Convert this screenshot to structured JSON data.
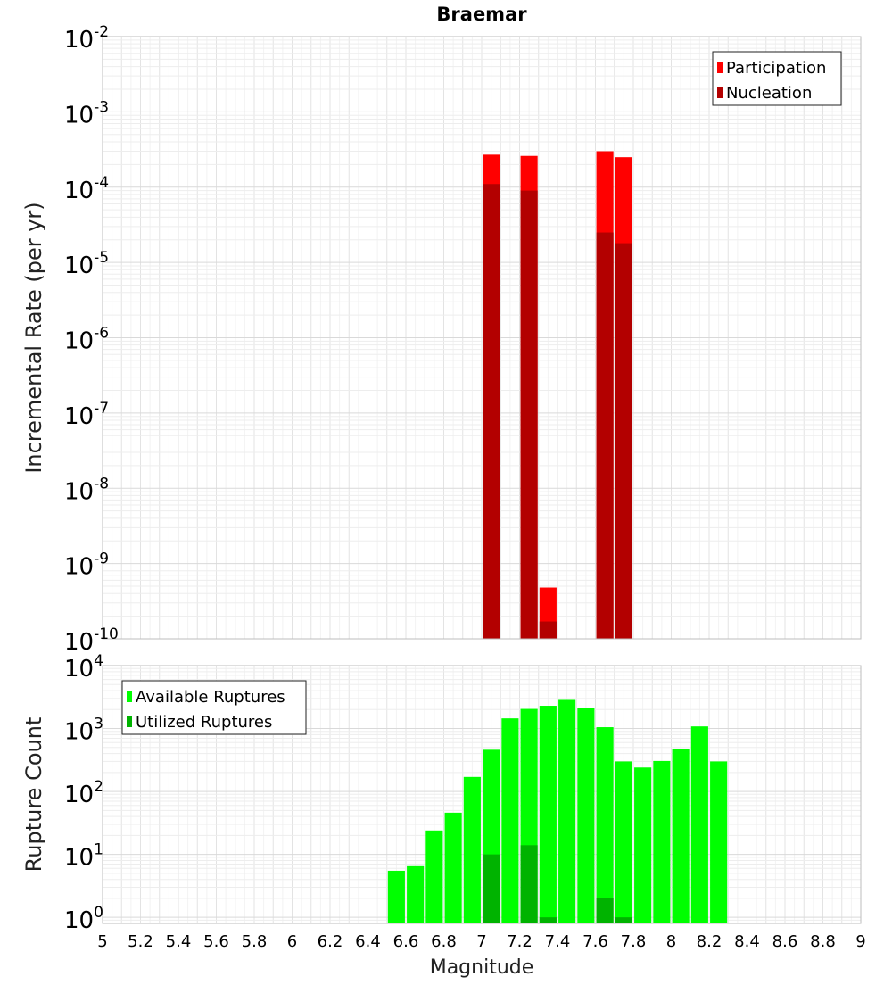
{
  "chart_data": [
    {
      "type": "bar",
      "title": "Braemar",
      "ylabel": "Incremental Rate (per yr)",
      "xlabel": "",
      "yscale": "log",
      "xlim": [
        5,
        9
      ],
      "ylim": [
        1e-10,
        0.01
      ],
      "y_tick_exponents": [
        -2,
        -3,
        -4,
        -5,
        -6,
        -7,
        -8,
        -9,
        -10
      ],
      "grid": true,
      "legend_position": "top-right",
      "bar_width": 0.09,
      "series": [
        {
          "name": "Participation",
          "color": "#ff0000",
          "points": [
            {
              "x": 7.05,
              "y": 0.00027
            },
            {
              "x": 7.25,
              "y": 0.00026
            },
            {
              "x": 7.35,
              "y": 4.8e-10
            },
            {
              "x": 7.65,
              "y": 0.0003
            },
            {
              "x": 7.75,
              "y": 0.00025
            }
          ]
        },
        {
          "name": "Nucleation",
          "color": "#b30000",
          "points": [
            {
              "x": 7.05,
              "y": 0.00011
            },
            {
              "x": 7.25,
              "y": 9e-05
            },
            {
              "x": 7.35,
              "y": 1.7e-10
            },
            {
              "x": 7.65,
              "y": 2.5e-05
            },
            {
              "x": 7.75,
              "y": 1.8e-05
            }
          ]
        }
      ]
    },
    {
      "type": "bar",
      "title": "",
      "ylabel": "Rupture Count",
      "xlabel": "Magnitude",
      "yscale": "log",
      "xlim": [
        5,
        9
      ],
      "ylim": [
        0.8,
        10000
      ],
      "y_tick_exponents": [
        4,
        3,
        2,
        1,
        0
      ],
      "x_ticks": [
        "5",
        "5.2",
        "5.4",
        "5.6",
        "5.8",
        "6",
        "6.2",
        "6.4",
        "6.6",
        "6.8",
        "7",
        "7.2",
        "7.4",
        "7.6",
        "7.8",
        "8",
        "8.2",
        "8.4",
        "8.6",
        "8.8",
        "9"
      ],
      "grid": true,
      "legend_position": "top-left",
      "bar_width": 0.09,
      "series": [
        {
          "name": "Available Ruptures",
          "color": "#00ff00",
          "points": [
            {
              "x": 6.55,
              "y": 5.5
            },
            {
              "x": 6.65,
              "y": 6.5
            },
            {
              "x": 6.75,
              "y": 24
            },
            {
              "x": 6.85,
              "y": 46
            },
            {
              "x": 6.95,
              "y": 170
            },
            {
              "x": 7.05,
              "y": 460
            },
            {
              "x": 7.15,
              "y": 1450
            },
            {
              "x": 7.25,
              "y": 2050
            },
            {
              "x": 7.35,
              "y": 2300
            },
            {
              "x": 7.45,
              "y": 2850
            },
            {
              "x": 7.55,
              "y": 2150
            },
            {
              "x": 7.65,
              "y": 1050
            },
            {
              "x": 7.75,
              "y": 300
            },
            {
              "x": 7.85,
              "y": 240
            },
            {
              "x": 7.95,
              "y": 305
            },
            {
              "x": 8.05,
              "y": 470
            },
            {
              "x": 8.15,
              "y": 1080
            },
            {
              "x": 8.25,
              "y": 300
            }
          ]
        },
        {
          "name": "Utilized Ruptures",
          "color": "#00b300",
          "points": [
            {
              "x": 7.05,
              "y": 10
            },
            {
              "x": 7.25,
              "y": 14
            },
            {
              "x": 7.35,
              "y": 1
            },
            {
              "x": 7.65,
              "y": 2
            },
            {
              "x": 7.75,
              "y": 1
            }
          ]
        }
      ]
    }
  ]
}
